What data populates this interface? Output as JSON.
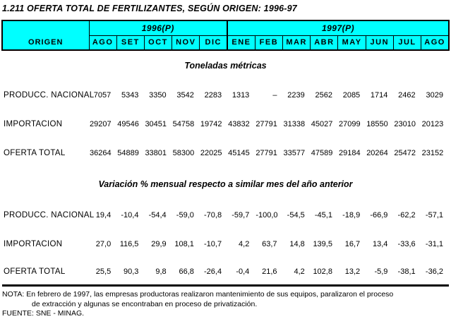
{
  "page": {
    "title": "1.211 OFERTA TOTAL DE FERTILIZANTES, SEGÚN ORIGEN: 1996-97"
  },
  "table": {
    "header_bg": "#00ffff",
    "origin_header": "ORIGEN",
    "year_groups": [
      {
        "label": "1996(P)",
        "months": [
          "AGO",
          "SET",
          "OCT",
          "NOV",
          "DIC"
        ]
      },
      {
        "label": "1997(P)",
        "months": [
          "ENE",
          "FEB",
          "MAR",
          "ABR",
          "MAY",
          "JUN",
          "JUL",
          "AGO"
        ]
      }
    ],
    "sections": [
      {
        "title": "Toneladas métricas",
        "rows": [
          {
            "label": "PRODUCC. NACIONAL",
            "values": [
              "7057",
              "5343",
              "3350",
              "3542",
              "2283",
              "1313",
              "–",
              "2239",
              "2562",
              "2085",
              "1714",
              "2462",
              "3029"
            ]
          },
          {
            "label": "IMPORTACION",
            "values": [
              "29207",
              "49546",
              "30451",
              "54758",
              "19742",
              "43832",
              "27791",
              "31338",
              "45027",
              "27099",
              "18550",
              "23010",
              "20123"
            ]
          },
          {
            "label": "OFERTA TOTAL",
            "values": [
              "36264",
              "54889",
              "33801",
              "58300",
              "22025",
              "45145",
              "27791",
              "33577",
              "47589",
              "29184",
              "20264",
              "25472",
              "23152"
            ]
          }
        ]
      },
      {
        "title": "Variación % mensual respecto a similar mes del año anterior",
        "rows": [
          {
            "label": "PRODUCC. NACIONAL",
            "values": [
              "19,4",
              "-10,4",
              "-54,4",
              "-59,0",
              "-70,8",
              "-59,7",
              "-100,0",
              "-54,5",
              "-45,1",
              "-18,9",
              "-66,9",
              "-62,2",
              "-57,1"
            ]
          },
          {
            "label": "IMPORTACION",
            "values": [
              "27,0",
              "116,5",
              "29,9",
              "108,1",
              "-10,7",
              "4,2",
              "63,7",
              "14,8",
              "139,5",
              "16,7",
              "13,4",
              "-33,6",
              "-31,1"
            ]
          },
          {
            "label": "OFERTA TOTAL",
            "values": [
              "25,5",
              "90,3",
              "9,8",
              "66,8",
              "-26,4",
              "-0,4",
              "21,6",
              "4,2",
              "102,8",
              "13,2",
              "-5,9",
              "-38,1",
              "-36,2"
            ]
          }
        ]
      }
    ]
  },
  "footer": {
    "note_line1": "NOTA: En febrero de 1997, las empresas productoras realizaron mantenimiento de sus equipos, paralizaron el proceso",
    "note_line2": "de extracción y algunas se encontraban en proceso de privatización.",
    "source": "FUENTE: SNE - MINAG."
  }
}
